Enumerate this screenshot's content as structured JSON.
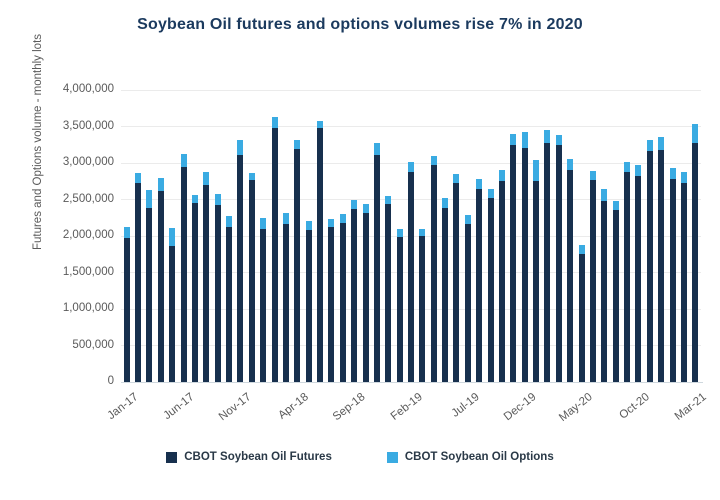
{
  "title": "Soybean Oil futures and options volumes rise 7% in 2020",
  "colors": {
    "futures": "#17304e",
    "options": "#3aabe2",
    "title_text": "#1b3a5e",
    "axis_text": "#5a5a5a",
    "gridline": "#ebebeb",
    "axis_line": "#cfd8de",
    "background": "#ffffff"
  },
  "legend": {
    "futures_label": "CBOT Soybean Oil Futures",
    "options_label": "CBOT Soybean Oil Options"
  },
  "chart_data": {
    "type": "bar",
    "stacked": true,
    "title": "Soybean Oil futures and options volumes rise 7% in 2020",
    "xlabel": "",
    "ylabel": "Futures and Options volume - monthly lots",
    "ylim": [
      0,
      4000000
    ],
    "ytick_step": 500000,
    "ytick_labels": [
      "0",
      "500,000",
      "1,000,000",
      "1,500,000",
      "2,000,000",
      "2,500,000",
      "3,000,000",
      "3,500,000",
      "4,000,000"
    ],
    "grid": true,
    "legend_position": "bottom",
    "xtick_every": 5,
    "xtick_shown": [
      "Jan-17",
      "Jun-17",
      "Nov-17",
      "Apr-18",
      "Sep-18",
      "Feb-19",
      "Jul-19",
      "Dec-19",
      "May-20",
      "Oct-20",
      "Mar-21"
    ],
    "categories": [
      "Jan-17",
      "Feb-17",
      "Mar-17",
      "Apr-17",
      "May-17",
      "Jun-17",
      "Jul-17",
      "Aug-17",
      "Sep-17",
      "Oct-17",
      "Nov-17",
      "Dec-17",
      "Jan-18",
      "Feb-18",
      "Mar-18",
      "Apr-18",
      "May-18",
      "Jun-18",
      "Jul-18",
      "Aug-18",
      "Sep-18",
      "Oct-18",
      "Nov-18",
      "Dec-18",
      "Jan-19",
      "Feb-19",
      "Mar-19",
      "Apr-19",
      "May-19",
      "Jun-19",
      "Jul-19",
      "Aug-19",
      "Sep-19",
      "Oct-19",
      "Nov-19",
      "Dec-19",
      "Jan-20",
      "Feb-20",
      "Mar-20",
      "Apr-20",
      "May-20",
      "Jun-20",
      "Jul-20",
      "Aug-20",
      "Sep-20",
      "Oct-20",
      "Nov-20",
      "Dec-20",
      "Jan-21",
      "Feb-21",
      "Mar-21"
    ],
    "series": [
      {
        "name": "CBOT Soybean Oil Futures",
        "color": "#17304e",
        "values": [
          1970000,
          2720000,
          2390000,
          2620000,
          1870000,
          2940000,
          2450000,
          2700000,
          2420000,
          2120000,
          3110000,
          2770000,
          2100000,
          3480000,
          2170000,
          3190000,
          2080000,
          3480000,
          2130000,
          2180000,
          2370000,
          2310000,
          3110000,
          2440000,
          1980000,
          2880000,
          2000000,
          2970000,
          2390000,
          2720000,
          2170000,
          2650000,
          2520000,
          2760000,
          3240000,
          3200000,
          2760000,
          3280000,
          3250000,
          2910000,
          1760000,
          2770000,
          2480000,
          2360000,
          2880000,
          2820000,
          3160000,
          3180000,
          2780000,
          2720000,
          3280000
        ]
      },
      {
        "name": "CBOT Soybean Oil Options",
        "color": "#3aabe2",
        "values": [
          160000,
          150000,
          240000,
          170000,
          240000,
          180000,
          110000,
          180000,
          150000,
          150000,
          210000,
          100000,
          140000,
          150000,
          150000,
          120000,
          130000,
          100000,
          110000,
          120000,
          130000,
          130000,
          160000,
          110000,
          110000,
          140000,
          90000,
          120000,
          130000,
          130000,
          120000,
          130000,
          130000,
          140000,
          160000,
          230000,
          280000,
          170000,
          130000,
          150000,
          120000,
          120000,
          160000,
          120000,
          140000,
          150000,
          160000,
          170000,
          150000,
          160000,
          250000
        ]
      }
    ]
  }
}
